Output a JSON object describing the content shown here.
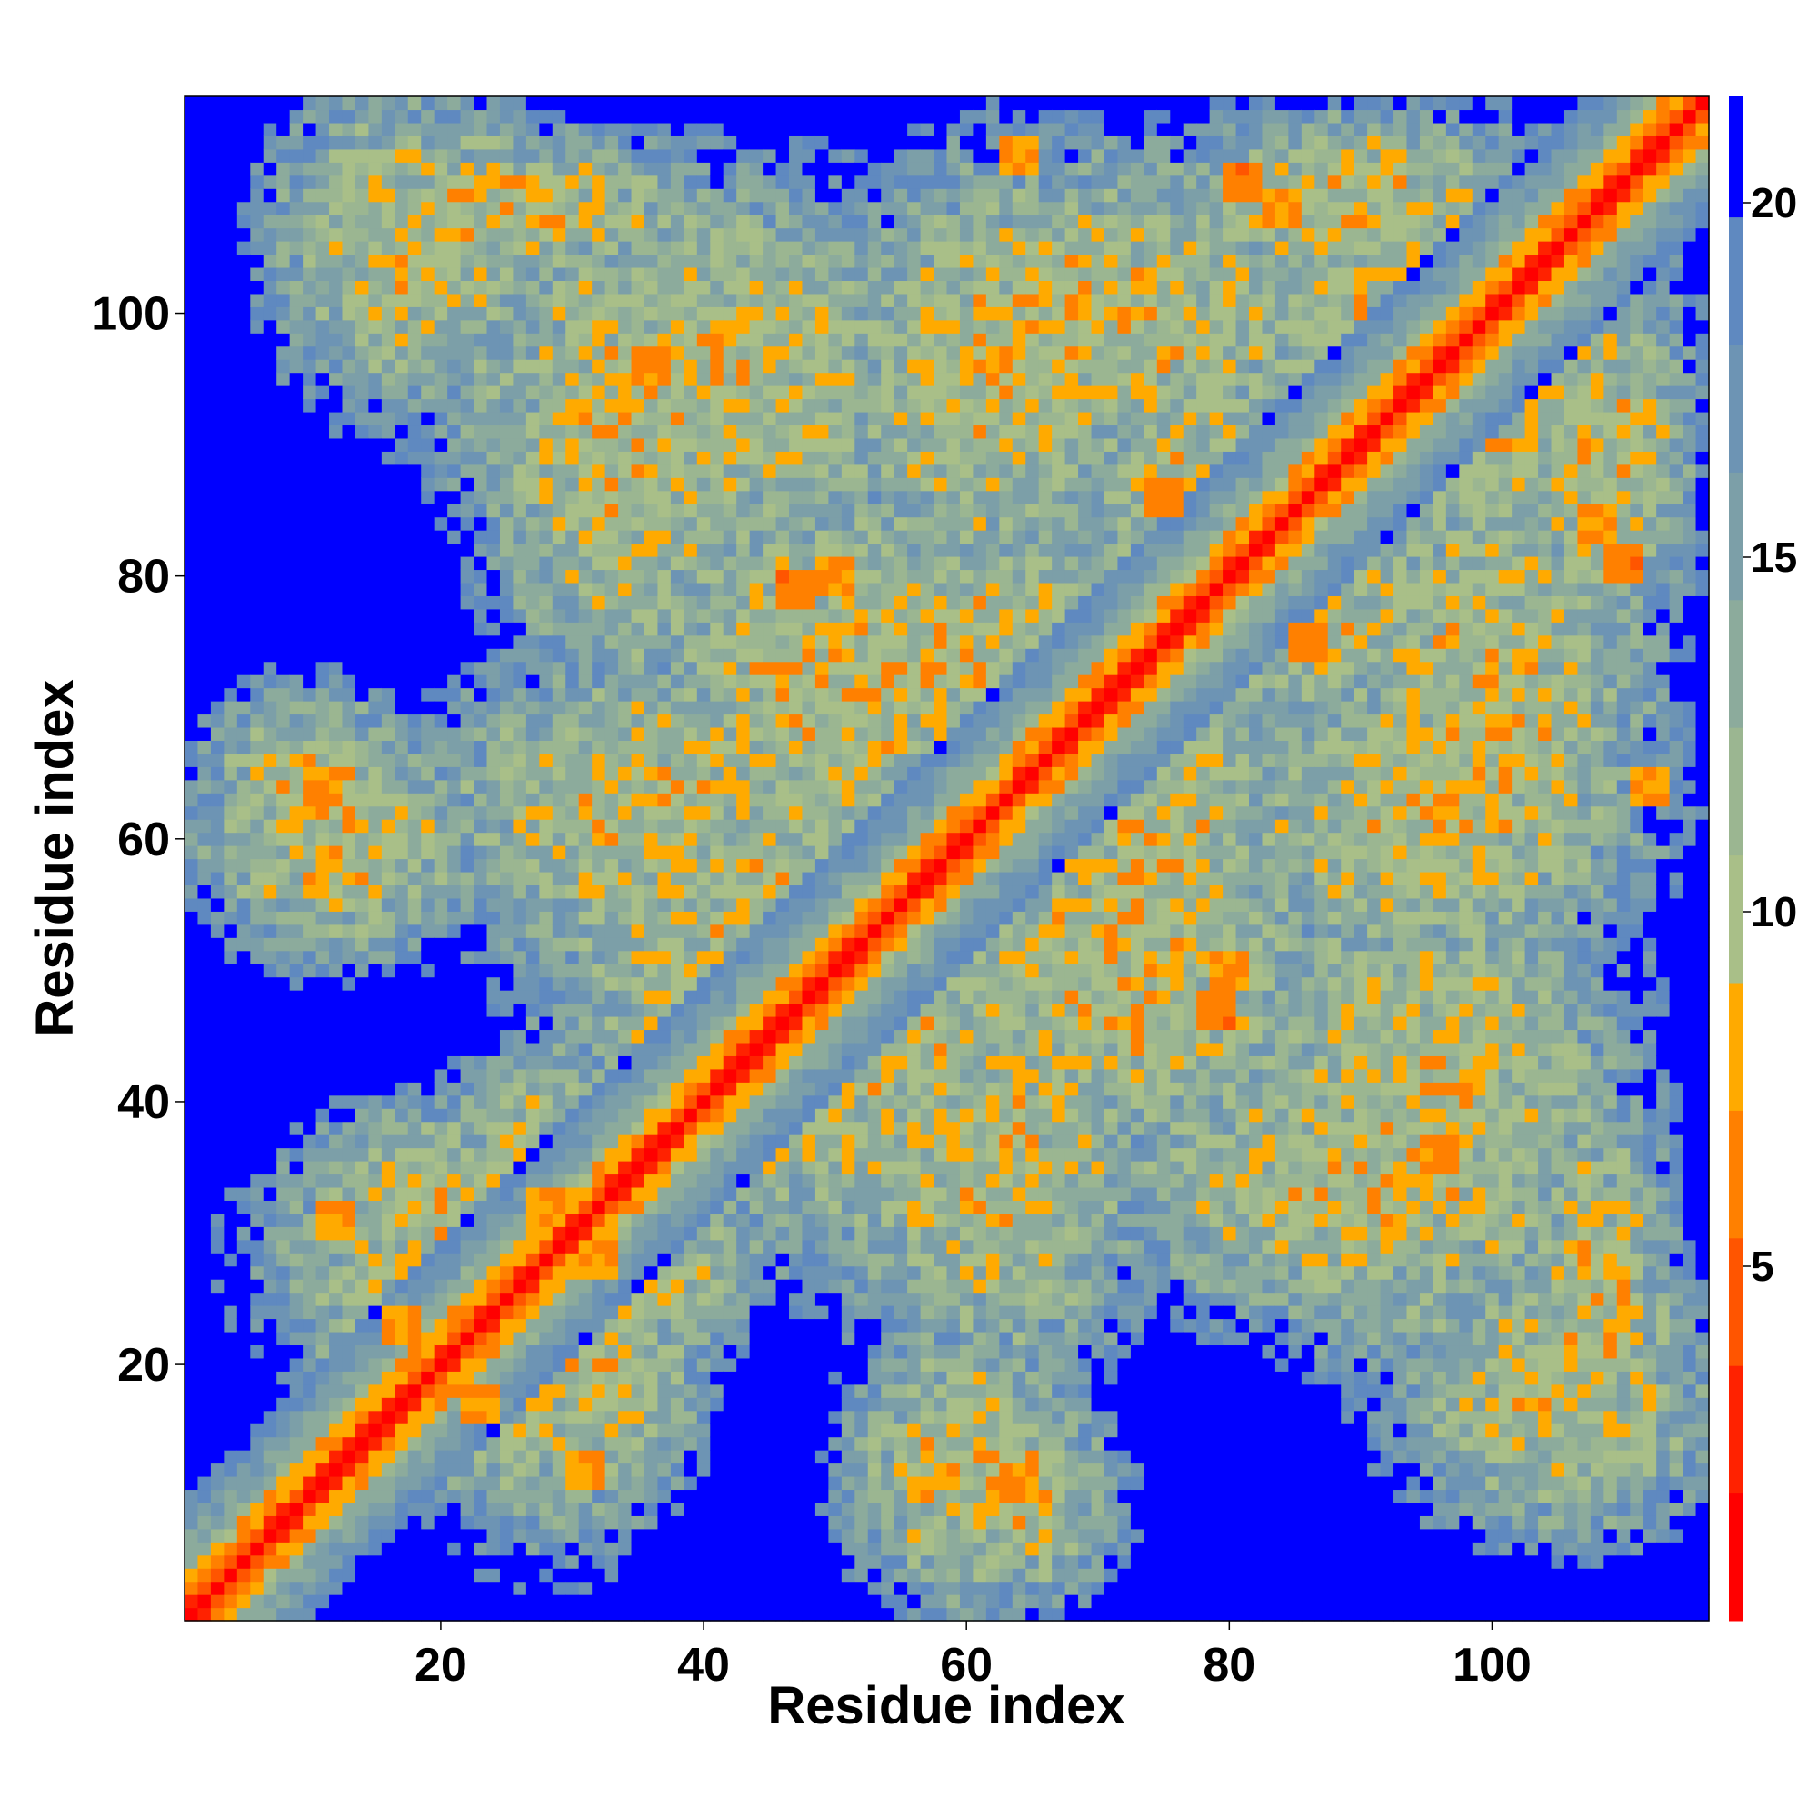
{
  "chart_data": {
    "type": "heatmap",
    "title": "",
    "xlabel": "Residue index",
    "ylabel": "Residue index",
    "xlim": [
      1,
      116
    ],
    "ylim": [
      1,
      116
    ],
    "n_residues": 116,
    "x_ticks": [
      20,
      40,
      60,
      80,
      100
    ],
    "y_ticks": [
      20,
      40,
      60,
      80,
      100
    ],
    "colorbar": {
      "range": [
        0,
        21.5
      ],
      "ticks": [
        5,
        10,
        15,
        20
      ],
      "levels": [
        {
          "max": 1.8,
          "color": "#ff0000"
        },
        {
          "max": 3.6,
          "color": "#ff2200"
        },
        {
          "max": 5.4,
          "color": "#ff5500"
        },
        {
          "max": 7.2,
          "color": "#ff8000"
        },
        {
          "max": 9.0,
          "color": "#ffaa00"
        },
        {
          "max": 10.8,
          "color": "#a9bf88"
        },
        {
          "max": 12.6,
          "color": "#9bb691"
        },
        {
          "max": 14.4,
          "color": "#8cab9c"
        },
        {
          "max": 16.2,
          "color": "#7c9fa8"
        },
        {
          "max": 18.0,
          "color": "#6d94b4"
        },
        {
          "max": 19.8,
          "color": "#5f89c0"
        },
        {
          "max": 21.5,
          "color": "#0000ff"
        }
      ]
    },
    "matrix_description": "Symmetric residue-residue distance map (Angstrom); diagonal distance 0 (red), near-diagonal contacts orange, distant pairs (>20) blue.",
    "contact_clusters": [
      {
        "i": 75,
        "j": 86,
        "d": 6
      },
      {
        "i": 47,
        "j": 79,
        "d": 5
      },
      {
        "i": 50,
        "j": 80,
        "d": 6
      },
      {
        "i": 11,
        "j": 64,
        "d": 6
      },
      {
        "i": 31,
        "j": 12,
        "d": 6
      },
      {
        "i": 23,
        "j": 17,
        "d": 6
      },
      {
        "i": 81,
        "j": 110,
        "d": 5
      },
      {
        "i": 84,
        "j": 108,
        "d": 6
      },
      {
        "i": 64,
        "j": 112,
        "d": 6
      },
      {
        "i": 96,
        "j": 36,
        "d": 6
      },
      {
        "i": 28,
        "j": 32,
        "d": 6
      }
    ]
  }
}
